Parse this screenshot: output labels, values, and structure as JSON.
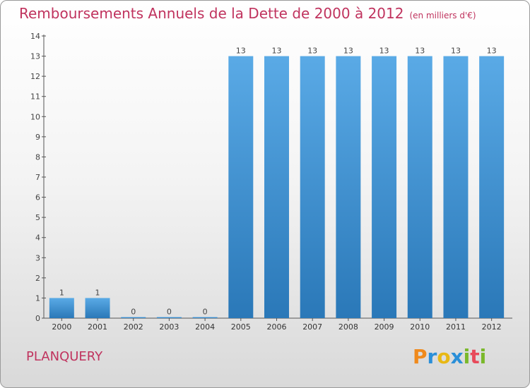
{
  "chart_data": {
    "type": "bar",
    "title": "Remboursements Annuels de la Dette de 2000 à 2012",
    "unit": "(en milliers d'€)",
    "categories": [
      "2000",
      "2001",
      "2002",
      "2003",
      "2004",
      "2005",
      "2006",
      "2007",
      "2008",
      "2009",
      "2010",
      "2011",
      "2012"
    ],
    "values": [
      1,
      1,
      0,
      0,
      0,
      13,
      13,
      13,
      13,
      13,
      13,
      13,
      13
    ],
    "ylim": [
      0,
      14
    ],
    "yticks": [
      0,
      1,
      2,
      3,
      4,
      5,
      6,
      7,
      8,
      9,
      10,
      11,
      12,
      13,
      14
    ],
    "grid": false,
    "bar_color_top": "#5aaae6",
    "bar_color_bottom": "#2a78b8"
  },
  "footer": {
    "town": "PLANQUERY",
    "logo_letters": [
      "P",
      "r",
      "o",
      "x",
      "i",
      "t",
      "i"
    ],
    "logo_colors": [
      "#f08a1c",
      "#2a8fd8",
      "#e8b814",
      "#2a8fd8",
      "#7ab82a",
      "#e84a5a",
      "#7ab82a"
    ]
  }
}
